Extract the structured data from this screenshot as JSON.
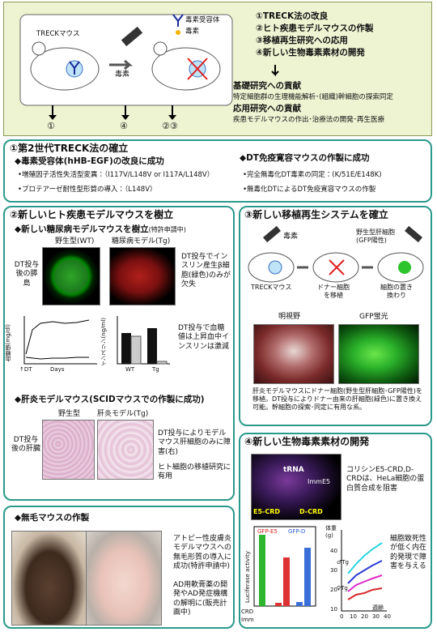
{
  "overview": {
    "mouse_label": "TRECKマウス",
    "toxin_label": "毒素",
    "legend": [
      "毒素受容体",
      "毒素"
    ],
    "goals": [
      "①TRECK法の改良",
      "②ヒト疾患モデルマウスの作製",
      "③移植再生研究への応用",
      "④新しい生物毒素素材の開発"
    ],
    "basic_title": "基礎研究への貢献",
    "basic_text": "特定細胞群の生理機能解析･(組織)幹細胞の探索同定",
    "applied_title": "応用研究への貢献",
    "applied_text": "疾患モデルマウスの作出･治療法の開発･再生医療",
    "arrows": [
      "①",
      "④",
      "②③"
    ]
  },
  "section1": {
    "title": "①第2世代TRECK法の確立",
    "left": {
      "heading": "◆毒素受容体(hHB-EGF)の改良に成功",
      "bullets": [
        "•増殖因子活性失活型変異：（I117V/L148V or I117A/L148V）",
        "•プロテアーゼ耐性型形質の導入：（L148V）"
      ]
    },
    "right": {
      "heading": "◆DT免疫寛容マウスの作製に成功",
      "bullets": [
        "•完全無毒化DT毒素の同定：(K/51E/E148K)",
        "•無毒化DTによるDT免疫寛容マウスの作製"
      ]
    }
  },
  "section2": {
    "title": "②新しいヒト疾患モデルマウスを樹立",
    "diabetes": {
      "heading": "◆新しい糖尿病モデルマウスを樹立",
      "note": "(特許申請中)",
      "wt_label": "野生型(WT)",
      "tg_label": "糖尿病モデル(Tg)",
      "side_label": "DT投与後の膵島",
      "result": "DT投与でインスリン産生β細胞(緑色)のみが欠失",
      "glucose_axis": "血糖値(mg/dl)",
      "days": "Days",
      "dt": "↑DT",
      "insulin_axis": "インスリン(ng/ml)",
      "bar_categories": [
        "WT",
        "Tg"
      ],
      "chart_result": "DT投与で血糖値は上昇血中インスリンは激減"
    },
    "hepatitis": {
      "heading": "◆肝炎モデルマウス(SCIDマウスでの作製に成功)",
      "wt_label": "野生型",
      "tg_label": "肝炎モデル(Tg)",
      "side_label": "DT投与後の肝臓",
      "result": "DT投与によりモデルマウス肝細胞のみに障害(右)",
      "use": "ヒト細胞の移植研究に有用"
    }
  },
  "section3": {
    "title": "③新しい移植再生システムを確立",
    "toxin": "毒素",
    "donor": "野生型肝細胞(GFP陽性)",
    "steps": [
      "TRECKマウス",
      "ドナー細胞を移植",
      "細胞の置き換わり"
    ],
    "photo_labels": [
      "明視野",
      "GFP蛍光"
    ],
    "caption": "肝炎モデルマウスにドナー細胞(野生型肝細胞･GFP陽性)を移植。DT投与によりドナー由来の肝細胞(緑色)に置き換え可能。幹細胞の探索･同定に有用な系。"
  },
  "section4": {
    "title": "④新しい生物毒素素材の開発",
    "structure_labels": [
      "tRNA",
      "ImmE5",
      "E5-CRD",
      "D-CRD"
    ],
    "text": "コリシンE5-CRD,D-CRDは、HeLa細胞の蛋白質合成を阻害",
    "luc_axis": "Luciferase activity",
    "luc_series": [
      "GFP-E5",
      "GFP-D"
    ],
    "luc_rows": [
      "CRD",
      "Imm"
    ],
    "weight_axis": "体重(g)",
    "weight_yticks": [
      "40",
      "30",
      "20",
      "10"
    ],
    "weight_xticks": [
      "0",
      "10",
      "20",
      "30",
      "40"
    ],
    "weight_x_label": "週齢",
    "weight_groups": [
      "♂Tg",
      "♀Tg"
    ],
    "result": "細胞致死性が低く内在的発現で障害を与える"
  },
  "section5": {
    "title": "◆無毛マウスの作製",
    "text1": "アトピー性皮膚炎モデルマウスへの無毛形質の導入に成功(特許申請中)",
    "text2": "AD用軟膏薬の開発やAD発症機構の解明に(販売計画中)"
  }
}
